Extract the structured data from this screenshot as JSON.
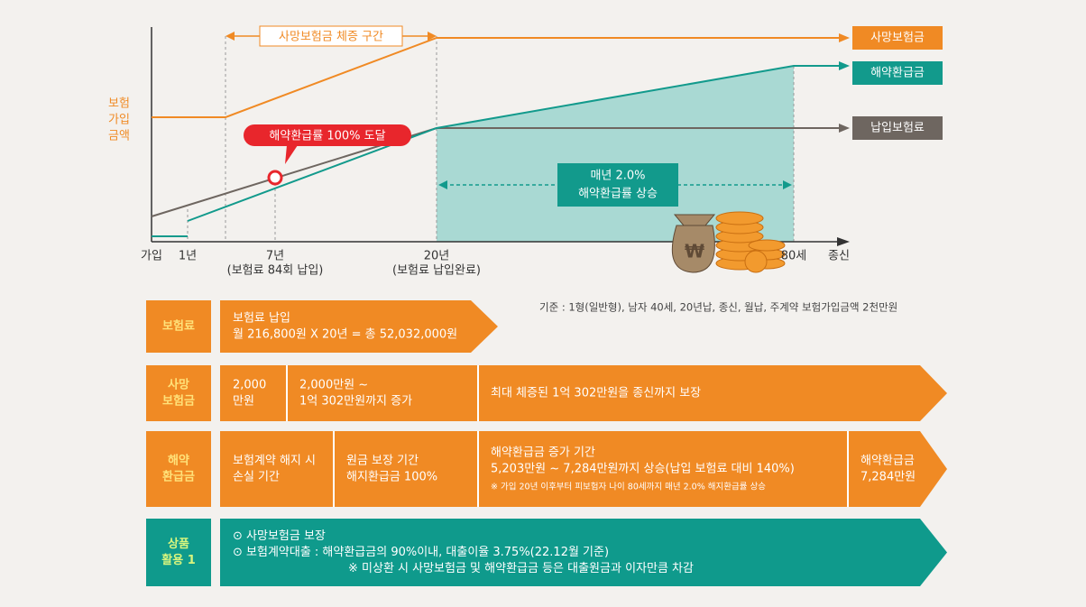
{
  "chart": {
    "y_axis_label": [
      "보험",
      "가입",
      "금액"
    ],
    "x_labels": [
      {
        "main": "가입"
      },
      {
        "main": "1년"
      },
      {
        "main": "7년",
        "sub": "(보험료 84회 납입)"
      },
      {
        "main": "20년",
        "sub": "(보험료 납입완료)"
      },
      {
        "main": "80세"
      },
      {
        "main": "종신"
      }
    ],
    "legend": [
      "사망보험금",
      "해약환급금",
      "납입보험료"
    ],
    "increase_zone": "사망보험금 체증 구간",
    "milestone": "해약환급률 100% 도달",
    "annual_rate": [
      "매년 2.0%",
      "해약환급률 상승"
    ],
    "icon_symbol": "₩"
  },
  "note": "기준 : 1형(일반형), 남자 40세, 20년납, 종신, 월납, 주계약 보험가입금액 2천만원",
  "rows": [
    {
      "label": [
        "보험료"
      ],
      "cells": [
        [
          "보험료 납입",
          "월 216,800원 X 20년 = 총 52,032,000원"
        ]
      ]
    },
    {
      "label": [
        "사망",
        "보험금"
      ],
      "cells": [
        [
          "2,000",
          "만원"
        ],
        [
          "2,000만원 ~",
          "1억 302만원까지 증가"
        ],
        [
          "최대 체증된 1억 302만원을 종신까지 보장"
        ]
      ]
    },
    {
      "label": [
        "해약",
        "환급금"
      ],
      "cells": [
        [
          "보험계약 해지 시",
          "손실 기간"
        ],
        [
          "원금 보장 기간",
          "해지환급금 100%"
        ],
        [
          "해약환급금 증가 기간",
          "5,203만원 ~ 7,284만원까지 상승(납입 보험료 대비 140%)"
        ],
        [
          "해약환급금",
          "7,284만원"
        ]
      ],
      "footnote": "※ 가입 20년 이후부터 피보험자 나이 80세까지 매년 2.0% 해지환급률 상승"
    },
    {
      "label": [
        "상품",
        "활용 1"
      ],
      "cells": [
        [
          "⊙ 사망보험금 보장",
          "⊙ 보험계약대출 : 해약환급금의 90%이내, 대출이율 3.75%(22.12월 기준)",
          "※ 미상환 시 사망보험금 및 해약환급금 등은 대출원금과 이자만큼 차감"
        ]
      ]
    }
  ]
}
